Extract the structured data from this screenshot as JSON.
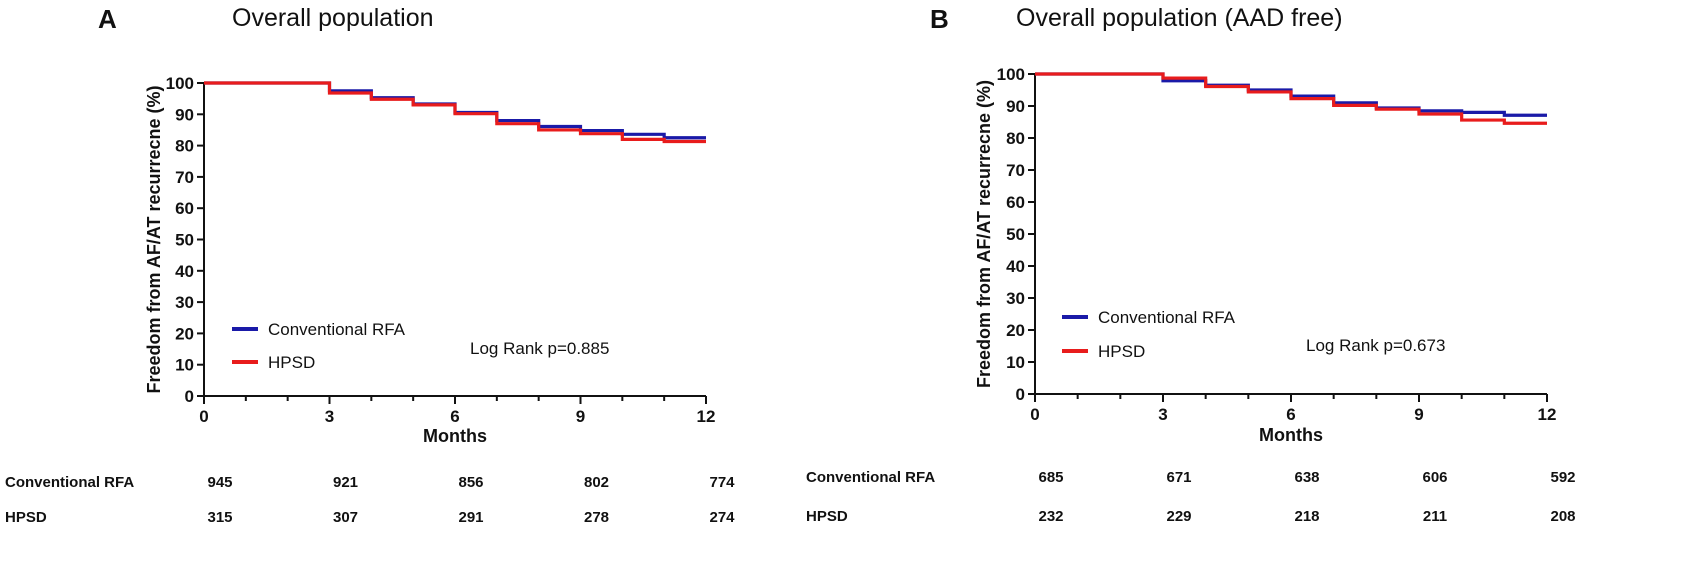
{
  "chart_data": [
    {
      "type": "line",
      "panel_letter": "A",
      "title": "Overall population",
      "xlabel": "Months",
      "ylabel": "Freedom from AF/AT recurrecne (%)",
      "xlim": [
        0,
        12
      ],
      "ylim": [
        0,
        100
      ],
      "x_ticks": [
        0,
        3,
        6,
        9,
        12
      ],
      "y_ticks": [
        0,
        10,
        20,
        30,
        40,
        50,
        60,
        70,
        80,
        90,
        100
      ],
      "legend_position": "lower-left",
      "annotation": "Log Rank p=0.885",
      "series": [
        {
          "name": "Conventional RFA",
          "color": "#1a1aa8",
          "steps": [
            [
              0,
              100
            ],
            [
              3,
              97.5
            ],
            [
              4,
              95.3
            ],
            [
              5,
              93.3
            ],
            [
              6,
              90.6
            ],
            [
              7,
              88.0
            ],
            [
              8,
              86.1
            ],
            [
              9,
              84.8
            ],
            [
              10,
              83.6
            ],
            [
              11,
              82.5
            ],
            [
              12,
              82.5
            ]
          ]
        },
        {
          "name": "HPSD",
          "color": "#e81c1c",
          "steps": [
            [
              0,
              100
            ],
            [
              3,
              96.8
            ],
            [
              4,
              94.8
            ],
            [
              5,
              93.0
            ],
            [
              6,
              90.2
            ],
            [
              7,
              87.0
            ],
            [
              8,
              85.0
            ],
            [
              9,
              83.8
            ],
            [
              10,
              82.0
            ],
            [
              11,
              81.3
            ],
            [
              12,
              81.3
            ]
          ]
        }
      ],
      "risk_table": {
        "rows": [
          {
            "label": "Conventional RFA",
            "values": [
              "945",
              "921",
              "856",
              "802",
              "774"
            ]
          },
          {
            "label": "HPSD",
            "values": [
              "315",
              "307",
              "291",
              "278",
              "274"
            ]
          }
        ]
      }
    },
    {
      "type": "line",
      "panel_letter": "B",
      "title": "Overall population (AAD free)",
      "xlabel": "Months",
      "ylabel": "Freedom from AF/AT recurrecne (%)",
      "xlim": [
        0,
        12
      ],
      "ylim": [
        0,
        100
      ],
      "x_ticks": [
        0,
        3,
        6,
        9,
        12
      ],
      "y_ticks": [
        0,
        10,
        20,
        30,
        40,
        50,
        60,
        70,
        80,
        90,
        100
      ],
      "legend_position": "lower-left",
      "annotation": "Log Rank p=0.673",
      "series": [
        {
          "name": "Conventional RFA",
          "color": "#1a1aa8",
          "steps": [
            [
              0,
              100
            ],
            [
              3,
              97.9
            ],
            [
              4,
              96.5
            ],
            [
              5,
              95.0
            ],
            [
              6,
              93.1
            ],
            [
              7,
              91.0
            ],
            [
              8,
              89.4
            ],
            [
              9,
              88.5
            ],
            [
              10,
              88.0
            ],
            [
              11,
              87.1
            ],
            [
              12,
              87.1
            ]
          ]
        },
        {
          "name": "HPSD",
          "color": "#e81c1c",
          "steps": [
            [
              0,
              100
            ],
            [
              3,
              98.7
            ],
            [
              4,
              96.1
            ],
            [
              5,
              94.4
            ],
            [
              6,
              92.3
            ],
            [
              7,
              90.2
            ],
            [
              8,
              89.0
            ],
            [
              9,
              87.5
            ],
            [
              10,
              85.6
            ],
            [
              11,
              84.6
            ],
            [
              12,
              84.6
            ]
          ]
        }
      ],
      "risk_table": {
        "rows": [
          {
            "label": "Conventional RFA",
            "values": [
              "685",
              "671",
              "638",
              "606",
              "592"
            ]
          },
          {
            "label": "HPSD",
            "values": [
              "232",
              "229",
              "218",
              "211",
              "208"
            ]
          }
        ]
      }
    }
  ]
}
